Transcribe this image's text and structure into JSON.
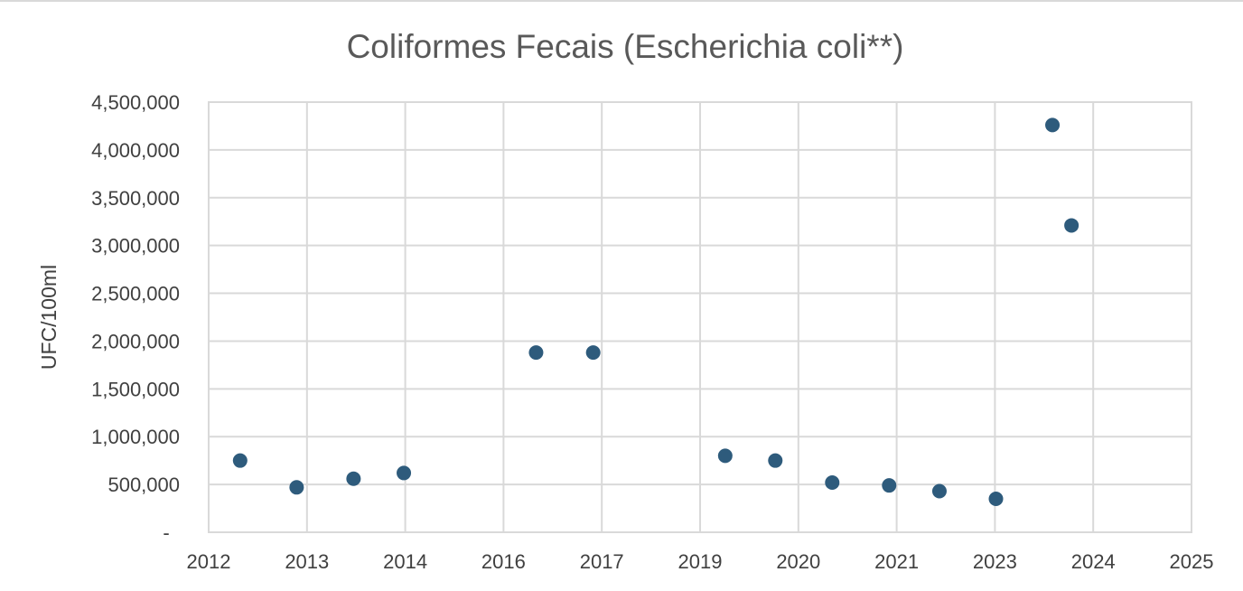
{
  "chart_data": {
    "type": "scatter",
    "title": "Coliformes Fecais (Escherichia coli**)",
    "xlabel": "",
    "ylabel": "UFC/100ml",
    "xlim": [
      2012,
      2025
    ],
    "ylim": [
      0,
      4500000
    ],
    "grid": true,
    "x_ticks": [
      "2012",
      "2013",
      "2014",
      "2016",
      "2017",
      "2019",
      "2020",
      "2021",
      "2023",
      "2024",
      "2025"
    ],
    "y_ticks": [
      "-",
      "500,000",
      "1,000,000",
      "1,500,000",
      "2,000,000",
      "2,500,000",
      "3,000,000",
      "3,500,000",
      "4,000,000",
      "4,500,000"
    ],
    "marker_color": "#2e5b7c",
    "series": [
      {
        "points": [
          {
            "x": "2012-06",
            "y": 750000
          },
          {
            "x": "2013-03",
            "y": 470000
          },
          {
            "x": "2013-12",
            "y": 560000
          },
          {
            "x": "2014-08",
            "y": 620000
          },
          {
            "x": "2016-05",
            "y": 1880000
          },
          {
            "x": "2017-02",
            "y": 1880000
          },
          {
            "x": "2018-11",
            "y": 800000
          },
          {
            "x": "2019-07",
            "y": 750000
          },
          {
            "x": "2020-04",
            "y": 520000
          },
          {
            "x": "2021-01",
            "y": 490000
          },
          {
            "x": "2021-09",
            "y": 430000
          },
          {
            "x": "2022-06",
            "y": 350000
          },
          {
            "x": "2023-03",
            "y": 4260000
          },
          {
            "x": "2023-06",
            "y": 3210000
          }
        ]
      }
    ]
  }
}
